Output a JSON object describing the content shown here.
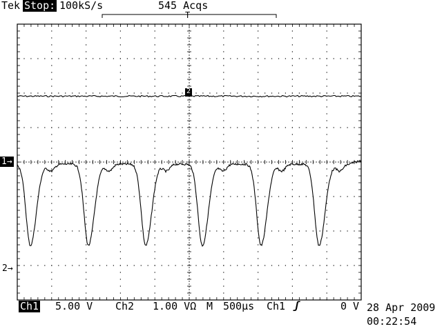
{
  "header": {
    "brand": "Tek",
    "state": "Stop:",
    "sample_rate": "100kS/s",
    "acquisitions": "545 Acqs",
    "trigger_marker": "T"
  },
  "markers": {
    "ch1": "1→",
    "ch2": "2→",
    "ch2_reference": "2"
  },
  "footer": {
    "ch1_label": "Ch1",
    "ch1_scale": "5.00 V",
    "ch2_label": "Ch2",
    "ch2_scale": "1.00 VΩ",
    "timebase_label": "M",
    "timebase": "500µs",
    "trigger_source": "Ch1",
    "trigger_slope": "ʃ",
    "trigger_level": "0 V"
  },
  "datetime": {
    "date": "28 Apr 2009",
    "time": "00:22:54"
  },
  "display": {
    "trace_color": "#000000",
    "grid_color": "#000000"
  }
}
